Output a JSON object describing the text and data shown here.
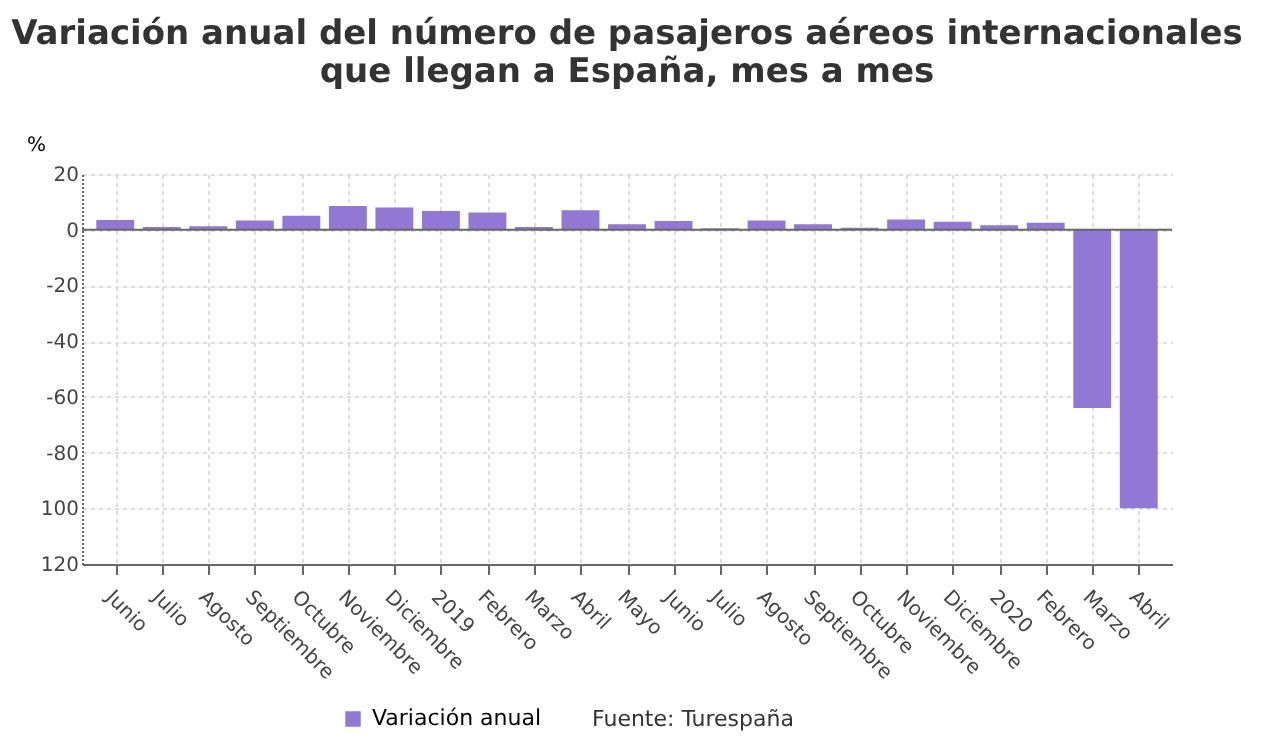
{
  "chart_data": {
    "type": "bar",
    "title": "Variación anual del número de pasajeros aéreos internacionales que llegan a España, mes a mes",
    "ylabel": "%",
    "categories": [
      "Junio",
      "Julio",
      "Agosto",
      "Septiembre",
      "Octubre",
      "Noviembre",
      "Diciembre",
      "2019",
      "Febrero",
      "Marzo",
      "Abril",
      "Mayo",
      "Junio",
      "Julio",
      "Agosto",
      "Septiembre",
      "Octubre",
      "Noviembre",
      "Diciembre",
      "2020",
      "Febrero",
      "Marzo",
      "Abril"
    ],
    "series": [
      {
        "name": "Variación anual",
        "color": "#9178d4",
        "values": [
          3.5,
          1,
          1.2,
          3.3,
          5,
          8.5,
          8,
          6.7,
          6.2,
          1,
          7,
          2,
          3.1,
          0.5,
          3.3,
          2,
          0.7,
          3.7,
          2.9,
          1.6,
          2.5,
          -64,
          -100
        ]
      }
    ],
    "ylim": [
      -120,
      20
    ],
    "yticks": [
      20,
      0,
      -20,
      -40,
      -60,
      -80,
      {
        "value": -100,
        "label": "100"
      },
      {
        "value": -120,
        "label": "120"
      }
    ],
    "grid": true,
    "legend": "bottom",
    "annotations": [
      "Fuente: Turespaña"
    ]
  }
}
